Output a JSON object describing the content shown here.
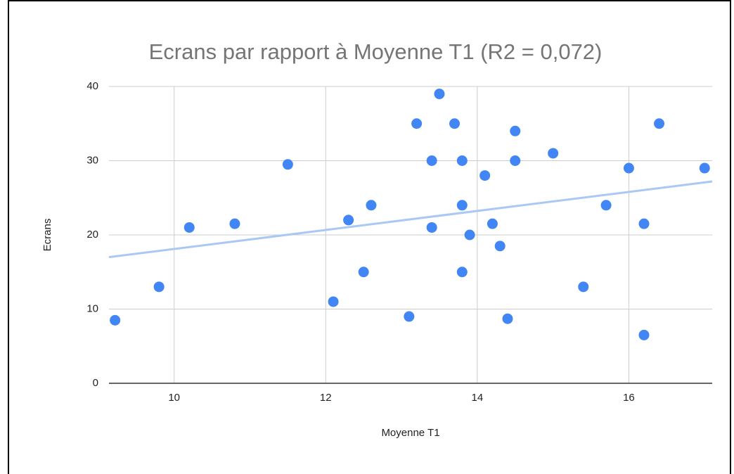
{
  "chart_data": {
    "type": "scatter",
    "title": "Ecrans par rapport à Moyenne T1 (R2 = 0,072)",
    "x_label": "Moyenne T1",
    "y_label": "Ecrans",
    "x": [
      9.22,
      9.8,
      10.2,
      10.8,
      11.5,
      12.1,
      12.3,
      12.5,
      12.6,
      13.1,
      13.2,
      13.4,
      13.4,
      13.5,
      13.7,
      13.8,
      13.8,
      13.8,
      13.9,
      14.1,
      14.2,
      14.3,
      14.4,
      14.5,
      14.5,
      15.0,
      15.4,
      15.7,
      16.0,
      16.2,
      16.2,
      16.4,
      17.0
    ],
    "series": [
      {
        "name": "Ecrans",
        "color": "#4285f4",
        "values": [
          8.5,
          13,
          21,
          21.5,
          29.5,
          11,
          22,
          15,
          24,
          9,
          35,
          30,
          21,
          39,
          35,
          30,
          24,
          15,
          20,
          28,
          21.5,
          18.5,
          8.7,
          34,
          30,
          31,
          13,
          24,
          29,
          21.5,
          6.5,
          35,
          29
        ]
      }
    ],
    "trendline": {
      "color": "#aac8f5",
      "x": [
        9.14,
        17.1
      ],
      "y": [
        17,
        27.2
      ]
    },
    "xlim": [
      9.14,
      17.1
    ],
    "ylim": [
      0,
      40
    ],
    "xticks": [
      10,
      12,
      14,
      16
    ],
    "yticks": [
      0,
      10,
      20,
      30,
      40
    ],
    "grid": true
  }
}
